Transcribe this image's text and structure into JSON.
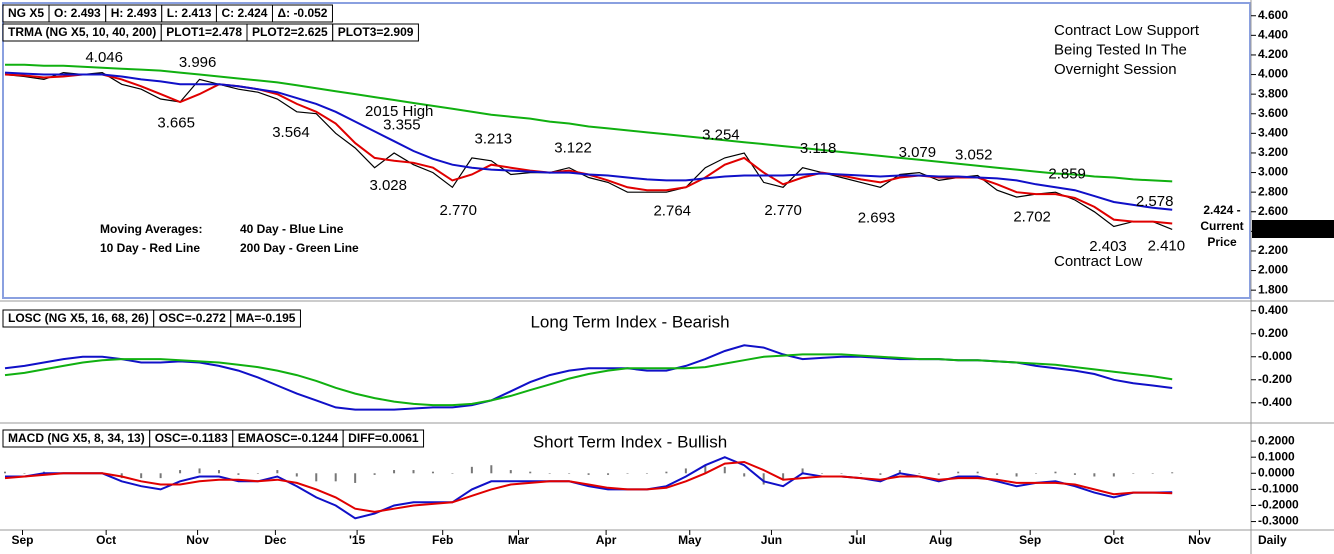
{
  "period": "Daily",
  "chart_data": [
    {
      "type": "line",
      "header": [
        "NG X5",
        "O: 2.493",
        "H: 2.493",
        "L: 2.413",
        "C: 2.424",
        "Δ: -0.052"
      ],
      "header2": [
        "TRMA (NG X5, 10, 40, 200)",
        "PLOT1=2.478",
        "PLOT2=2.625",
        "PLOT3=2.909"
      ],
      "xlim": [
        0,
        64
      ],
      "ylim": [
        1.72,
        4.73
      ],
      "yticks": [
        {
          "value": 4.6,
          "label": "4.600"
        },
        {
          "value": 4.4,
          "label": "4.400"
        },
        {
          "value": 4.2,
          "label": "4.200"
        },
        {
          "value": 4.0,
          "label": "4.000"
        },
        {
          "value": 3.8,
          "label": "3.800"
        },
        {
          "value": 3.6,
          "label": "3.600"
        },
        {
          "value": 3.4,
          "label": "3.400"
        },
        {
          "value": 3.2,
          "label": "3.200"
        },
        {
          "value": 3.0,
          "label": "3.000"
        },
        {
          "value": 2.8,
          "label": "2.800"
        },
        {
          "value": 2.6,
          "label": "2.600"
        },
        {
          "value": 2.4,
          "label": "2.400"
        },
        {
          "value": 2.2,
          "label": "2.200"
        },
        {
          "value": 2.0,
          "label": "2.000"
        },
        {
          "value": 1.8,
          "label": "1.800"
        }
      ],
      "color": "#000000",
      "values": [
        4.0,
        3.98,
        3.95,
        4.02,
        4.0,
        4.02,
        3.9,
        3.85,
        3.75,
        3.72,
        3.95,
        3.9,
        3.85,
        3.82,
        3.75,
        3.62,
        3.6,
        3.4,
        3.25,
        3.05,
        3.2,
        3.08,
        3.0,
        2.85,
        3.15,
        3.12,
        2.98,
        3.0,
        3.0,
        3.05,
        2.95,
        2.9,
        2.8,
        2.8,
        2.8,
        2.85,
        3.05,
        3.15,
        3.2,
        2.9,
        2.85,
        3.05,
        3.0,
        2.95,
        2.9,
        2.85,
        2.98,
        3.0,
        2.92,
        2.95,
        2.97,
        2.82,
        2.75,
        2.78,
        2.8,
        2.72,
        2.6,
        2.45,
        2.5,
        2.5,
        2.42
      ],
      "legend_title": "Moving Averages:",
      "series": [
        {
          "name": "10 Day - Red Line",
          "color": "#e00000",
          "values": [
            4.0,
            3.99,
            3.97,
            3.98,
            4.0,
            4.0,
            3.95,
            3.88,
            3.8,
            3.72,
            3.8,
            3.9,
            3.88,
            3.85,
            3.8,
            3.7,
            3.62,
            3.5,
            3.3,
            3.15,
            3.12,
            3.1,
            3.05,
            2.92,
            2.98,
            3.08,
            3.05,
            3.02,
            3.0,
            3.02,
            2.98,
            2.92,
            2.85,
            2.82,
            2.82,
            2.85,
            2.95,
            3.08,
            3.15,
            3.0,
            2.88,
            2.95,
            3.0,
            2.97,
            2.93,
            2.9,
            2.95,
            2.97,
            2.95,
            2.95,
            2.95,
            2.88,
            2.8,
            2.78,
            2.78,
            2.74,
            2.65,
            2.52,
            2.5,
            2.5,
            2.48
          ]
        },
        {
          "name": "40 Day - Blue Line",
          "color": "#1010c8",
          "values": [
            4.02,
            4.01,
            4.0,
            4.0,
            4.0,
            4.0,
            3.98,
            3.95,
            3.93,
            3.9,
            3.9,
            3.9,
            3.88,
            3.85,
            3.82,
            3.76,
            3.7,
            3.62,
            3.52,
            3.42,
            3.32,
            3.22,
            3.14,
            3.08,
            3.05,
            3.03,
            3.02,
            3.01,
            3.0,
            3.0,
            2.98,
            2.97,
            2.95,
            2.93,
            2.92,
            2.92,
            2.94,
            2.96,
            2.97,
            2.97,
            2.97,
            2.98,
            2.99,
            2.98,
            2.97,
            2.96,
            2.97,
            2.97,
            2.96,
            2.96,
            2.95,
            2.94,
            2.92,
            2.88,
            2.85,
            2.82,
            2.76,
            2.7,
            2.67,
            2.64,
            2.62
          ]
        },
        {
          "name": "200 Day - Green Line",
          "color": "#10b010",
          "values": [
            4.1,
            4.1,
            4.09,
            4.09,
            4.08,
            4.07,
            4.06,
            4.05,
            4.04,
            4.02,
            4.0,
            3.98,
            3.96,
            3.94,
            3.92,
            3.89,
            3.86,
            3.83,
            3.8,
            3.77,
            3.74,
            3.71,
            3.68,
            3.65,
            3.62,
            3.59,
            3.57,
            3.55,
            3.52,
            3.5,
            3.47,
            3.45,
            3.43,
            3.41,
            3.39,
            3.37,
            3.35,
            3.33,
            3.31,
            3.29,
            3.27,
            3.25,
            3.23,
            3.21,
            3.19,
            3.17,
            3.15,
            3.13,
            3.11,
            3.09,
            3.07,
            3.05,
            3.03,
            3.01,
            2.99,
            2.98,
            2.96,
            2.95,
            2.93,
            2.92,
            2.91
          ]
        }
      ],
      "highs": [
        {
          "label": "4.046",
          "x": 5.1,
          "y": 4.046,
          "color": "#000000"
        },
        {
          "label": "3.996",
          "x": 9.9,
          "y": 3.996,
          "color": "#000000"
        },
        {
          "label": "3.355",
          "x": 20.4,
          "y": 3.355,
          "color": "#1010c8"
        },
        {
          "label": "3.213",
          "x": 25.1,
          "y": 3.213,
          "color": "#000000"
        },
        {
          "label": "3.122",
          "x": 29.2,
          "y": 3.122,
          "color": "#000000"
        },
        {
          "label": "3.254",
          "x": 36.8,
          "y": 3.254,
          "color": "#000000"
        },
        {
          "label": "3.118",
          "x": 41.8,
          "y": 3.118,
          "color": "#000000"
        },
        {
          "label": "3.079",
          "x": 46.9,
          "y": 3.079,
          "color": "#000000"
        },
        {
          "label": "3.052",
          "x": 49.8,
          "y": 3.052,
          "color": "#000000"
        },
        {
          "label": "2.859",
          "x": 54.6,
          "y": 2.859,
          "color": "#000000"
        },
        {
          "label": "2.578",
          "x": 59.1,
          "y": 2.578,
          "color": "#000000"
        }
      ],
      "lows": [
        {
          "label": "3.665",
          "x": 8.8,
          "y": 3.665,
          "color": "#000000"
        },
        {
          "label": "3.564",
          "x": 14.7,
          "y": 3.564,
          "color": "#000000"
        },
        {
          "label": "3.028",
          "x": 19.7,
          "y": 3.028,
          "color": "#000000"
        },
        {
          "label": "2.770",
          "x": 23.3,
          "y": 2.77,
          "color": "#000000"
        },
        {
          "label": "2.764",
          "x": 34.3,
          "y": 2.764,
          "color": "#000000"
        },
        {
          "label": "2.770",
          "x": 40.0,
          "y": 2.77,
          "color": "#000000"
        },
        {
          "label": "2.693",
          "x": 44.8,
          "y": 2.693,
          "color": "#000000"
        },
        {
          "label": "2.702",
          "x": 52.8,
          "y": 2.702,
          "color": "#000000"
        },
        {
          "label": "2.403",
          "x": 56.7,
          "y": 2.403,
          "color": "#e00000"
        },
        {
          "label": "2.410",
          "x": 59.7,
          "y": 2.41,
          "color": "#e00000"
        }
      ],
      "high_note": "2015 High",
      "support_note": [
        "Contract Low Support",
        "Being Tested In The",
        "Overnight Session"
      ],
      "low_note": "Contract Low",
      "last_note": [
        "2.424 -",
        "Current",
        "Price"
      ],
      "last": 2.424
    },
    {
      "type": "line",
      "title": "Long Term Index - Bearish",
      "header": [
        "LOSC (NG X5, 16, 68, 26)",
        "OSC=-0.272",
        "MA=-0.195"
      ],
      "xlim": [
        0,
        64
      ],
      "ylim": [
        -0.55,
        0.45
      ],
      "yticks": [
        {
          "value": 0.4,
          "label": "0.400"
        },
        {
          "value": 0.2,
          "label": "0.200"
        },
        {
          "value": 0,
          "label": "-0.000"
        },
        {
          "value": -0.2,
          "label": "-0.200"
        },
        {
          "value": -0.4,
          "label": "-0.400"
        }
      ],
      "series": [
        {
          "color": "#1010c8",
          "values": [
            -0.1,
            -0.08,
            -0.05,
            -0.02,
            0.0,
            0.0,
            -0.02,
            -0.05,
            -0.05,
            -0.04,
            -0.05,
            -0.08,
            -0.12,
            -0.18,
            -0.25,
            -0.32,
            -0.38,
            -0.44,
            -0.46,
            -0.46,
            -0.46,
            -0.45,
            -0.44,
            -0.44,
            -0.42,
            -0.38,
            -0.3,
            -0.22,
            -0.16,
            -0.12,
            -0.1,
            -0.1,
            -0.1,
            -0.12,
            -0.12,
            -0.08,
            -0.02,
            0.05,
            0.1,
            0.08,
            0.02,
            -0.02,
            -0.01,
            0.0,
            0.0,
            -0.01,
            -0.02,
            -0.02,
            -0.02,
            -0.03,
            -0.03,
            -0.04,
            -0.05,
            -0.08,
            -0.1,
            -0.12,
            -0.15,
            -0.2,
            -0.23,
            -0.25,
            -0.272
          ]
        },
        {
          "color": "#10b010",
          "values": [
            -0.16,
            -0.14,
            -0.11,
            -0.08,
            -0.05,
            -0.03,
            -0.02,
            -0.02,
            -0.02,
            -0.03,
            -0.04,
            -0.05,
            -0.07,
            -0.09,
            -0.12,
            -0.16,
            -0.21,
            -0.27,
            -0.32,
            -0.36,
            -0.39,
            -0.41,
            -0.42,
            -0.42,
            -0.41,
            -0.38,
            -0.34,
            -0.29,
            -0.24,
            -0.19,
            -0.15,
            -0.12,
            -0.1,
            -0.1,
            -0.1,
            -0.1,
            -0.09,
            -0.06,
            -0.03,
            0.0,
            0.01,
            0.02,
            0.02,
            0.02,
            0.01,
            0.0,
            -0.01,
            -0.02,
            -0.02,
            -0.03,
            -0.03,
            -0.04,
            -0.05,
            -0.06,
            -0.07,
            -0.09,
            -0.11,
            -0.13,
            -0.15,
            -0.17,
            -0.195
          ]
        }
      ]
    },
    {
      "type": "line",
      "title": "Short Term Index - Bullish",
      "header": [
        "MACD (NG X5, 8, 34, 13)",
        "OSC=-0.1183",
        "EMAOSC=-0.1244",
        "DIFF=0.0061"
      ],
      "xlim": [
        0,
        64
      ],
      "ylim": [
        -0.34,
        0.3
      ],
      "yticks": [
        {
          "value": 0.2,
          "label": "0.2000"
        },
        {
          "value": 0.1,
          "label": "0.1000"
        },
        {
          "value": 0,
          "label": "0.0000"
        },
        {
          "value": -0.1,
          "label": "-0.1000"
        },
        {
          "value": -0.2,
          "label": "-0.2000"
        },
        {
          "value": -0.3,
          "label": "-0.3000"
        }
      ],
      "xticks": [
        {
          "value": 0.9,
          "label": "Sep"
        },
        {
          "value": 5.2,
          "label": "Oct"
        },
        {
          "value": 9.9,
          "label": "Nov"
        },
        {
          "value": 13.9,
          "label": "Dec"
        },
        {
          "value": 18.1,
          "label": "'15"
        },
        {
          "value": 22.5,
          "label": "Feb"
        },
        {
          "value": 26.4,
          "label": "Mar"
        },
        {
          "value": 30.9,
          "label": "Apr"
        },
        {
          "value": 35.2,
          "label": "May"
        },
        {
          "value": 39.4,
          "label": "Jun"
        },
        {
          "value": 43.8,
          "label": "Jul"
        },
        {
          "value": 48.1,
          "label": "Aug"
        },
        {
          "value": 52.7,
          "label": "Sep"
        },
        {
          "value": 57.0,
          "label": "Oct"
        },
        {
          "value": 61.4,
          "label": "Nov"
        }
      ],
      "histogram": {
        "color": "#777777",
        "values": [
          0.01,
          0,
          0.01,
          0,
          0,
          0,
          -0.03,
          -0.03,
          -0.03,
          0.02,
          0.03,
          0.02,
          -0.01,
          0,
          0.02,
          -0.02,
          -0.05,
          -0.05,
          -0.06,
          -0.01,
          0.02,
          0.02,
          0.01,
          0,
          0.04,
          0.05,
          0.02,
          0.01,
          0,
          0,
          -0.01,
          -0.01,
          0,
          0,
          0.01,
          0.03,
          0.05,
          0.04,
          -0.02,
          -0.07,
          -0.04,
          0.03,
          0,
          0,
          0,
          -0.01,
          0.02,
          0,
          -0.01,
          0.01,
          0.01,
          -0.01,
          -0.02,
          0,
          0.01,
          -0.01,
          -0.02,
          -0.02,
          0,
          0,
          0.0061
        ]
      },
      "series": [
        {
          "color": "#1010c8",
          "values": [
            -0.02,
            -0.02,
            0.0,
            0.0,
            0.0,
            0.0,
            -0.05,
            -0.08,
            -0.1,
            -0.05,
            -0.02,
            -0.02,
            -0.05,
            -0.05,
            -0.02,
            -0.08,
            -0.15,
            -0.2,
            -0.28,
            -0.25,
            -0.2,
            -0.18,
            -0.18,
            -0.18,
            -0.1,
            -0.05,
            -0.05,
            -0.05,
            -0.05,
            -0.05,
            -0.08,
            -0.1,
            -0.1,
            -0.1,
            -0.08,
            -0.02,
            0.05,
            0.1,
            0.05,
            -0.05,
            -0.08,
            0.0,
            -0.02,
            -0.02,
            -0.03,
            -0.05,
            0.0,
            -0.02,
            -0.05,
            -0.02,
            -0.02,
            -0.05,
            -0.08,
            -0.06,
            -0.05,
            -0.08,
            -0.12,
            -0.15,
            -0.12,
            -0.12,
            -0.1183
          ]
        },
        {
          "color": "#e00000",
          "values": [
            -0.03,
            -0.02,
            -0.01,
            0.0,
            0.0,
            0.0,
            -0.02,
            -0.05,
            -0.07,
            -0.07,
            -0.05,
            -0.04,
            -0.04,
            -0.05,
            -0.04,
            -0.06,
            -0.1,
            -0.15,
            -0.22,
            -0.24,
            -0.22,
            -0.2,
            -0.19,
            -0.18,
            -0.14,
            -0.1,
            -0.07,
            -0.06,
            -0.05,
            -0.05,
            -0.07,
            -0.09,
            -0.1,
            -0.1,
            -0.09,
            -0.05,
            0.0,
            0.06,
            0.07,
            0.02,
            -0.04,
            -0.03,
            -0.02,
            -0.02,
            -0.03,
            -0.04,
            -0.02,
            -0.02,
            -0.04,
            -0.03,
            -0.03,
            -0.04,
            -0.06,
            -0.06,
            -0.06,
            -0.07,
            -0.1,
            -0.13,
            -0.12,
            -0.12,
            -0.1244
          ]
        }
      ]
    }
  ]
}
